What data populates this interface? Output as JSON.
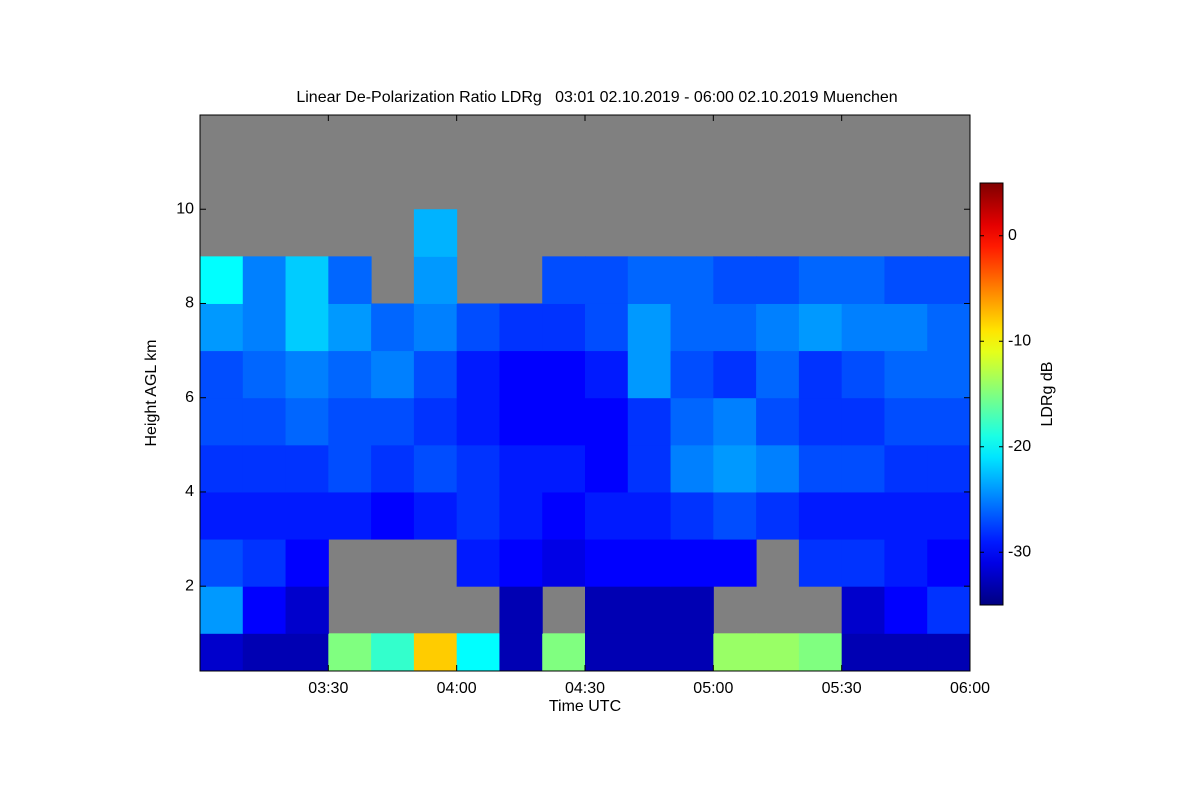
{
  "chart_data": {
    "type": "heatmap",
    "title": "Linear De-Polarization Ratio LDRg   03:01 02.10.2019 - 06:00 02.10.2019 Muenchen",
    "x_label": "Time UTC",
    "y_label": "Height AGL km",
    "colorbar_label": "LDRg dB",
    "x": [
      5,
      15,
      25,
      35,
      45,
      55,
      65,
      75,
      85,
      95,
      105,
      115,
      125,
      135,
      145,
      155,
      165,
      175
    ],
    "y": [
      0.5,
      1.5,
      2.5,
      3.5,
      4.5,
      5.5,
      6.5,
      7.5,
      8.5,
      9.5
    ],
    "z": [
      [
        -32,
        -33,
        -33,
        -15,
        -18,
        -8,
        -20,
        -33,
        -15,
        -33,
        -33,
        -33,
        -14,
        -14,
        -15,
        -33,
        -33,
        -33
      ],
      [
        -24,
        -30,
        -32,
        null,
        null,
        null,
        null,
        -33,
        null,
        -33,
        -33,
        -33,
        null,
        null,
        null,
        -32,
        -30,
        -28
      ],
      [
        -27,
        -28,
        -30,
        null,
        null,
        null,
        -29,
        -30,
        -31,
        -30,
        -30,
        -30,
        -30,
        null,
        -28,
        -28,
        -29,
        -30
      ],
      [
        -29,
        -29,
        -29,
        -29,
        -30,
        -29,
        -28,
        -29,
        -30,
        -29,
        -29,
        -28,
        -27,
        -28,
        -29,
        -29,
        -29,
        -29
      ],
      [
        -28,
        -28,
        -28,
        -27,
        -28,
        -27,
        -28,
        -29,
        -29,
        -30,
        -28,
        -25,
        -24,
        -25,
        -27,
        -27,
        -28,
        -28
      ],
      [
        -27,
        -27,
        -26,
        -27,
        -27,
        -28,
        -29,
        -30,
        -30,
        -30,
        -28,
        -26,
        -25,
        -27,
        -28,
        -28,
        -27,
        -27
      ],
      [
        -27,
        -26,
        -25,
        -26,
        -25,
        -27,
        -29,
        -30,
        -30,
        -29,
        -24,
        -27,
        -28,
        -26,
        -28,
        -27,
        -26,
        -26
      ],
      [
        -24,
        -25,
        -22,
        -24,
        -26,
        -25,
        -27,
        -28,
        -28,
        -27,
        -24,
        -26,
        -26,
        -25,
        -24,
        -25,
        -25,
        -26
      ],
      [
        -20,
        -25,
        -22,
        -26,
        null,
        -24,
        null,
        null,
        -27,
        -27,
        -26,
        -26,
        -27,
        -27,
        -26,
        -26,
        -27,
        -27
      ],
      [
        null,
        null,
        null,
        null,
        null,
        -23,
        null,
        null,
        null,
        null,
        null,
        null,
        null,
        null,
        null,
        null,
        null,
        null
      ]
    ],
    "xlim": [
      0,
      180
    ],
    "xticks": [
      {
        "value": 30,
        "label": "03:30"
      },
      {
        "value": 60,
        "label": "04:00"
      },
      {
        "value": 90,
        "label": "04:30"
      },
      {
        "value": 120,
        "label": "05:00"
      },
      {
        "value": 150,
        "label": "05:30"
      },
      {
        "value": 180,
        "label": "06:00"
      }
    ],
    "ylim": [
      0.2,
      12
    ],
    "yticks": [
      2,
      4,
      6,
      8,
      10
    ],
    "zlim": [
      -35,
      5
    ],
    "zticks": [
      0,
      -10,
      -20,
      -30
    ],
    "colormap": "jet",
    "missing_color": "#808080"
  }
}
